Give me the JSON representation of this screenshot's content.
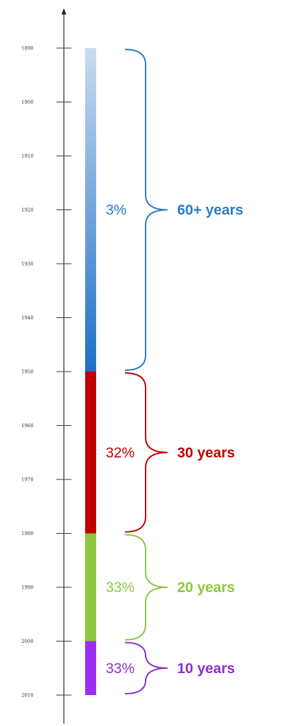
{
  "chart_data": {
    "type": "bar",
    "orientation": "vertical-timeline",
    "ylim": [
      1887,
      2014
    ],
    "tick_labels": [
      "1890",
      "1900",
      "1910",
      "1920",
      "1930",
      "1940",
      "1950",
      "1960",
      "1970",
      "1980",
      "1990",
      "2000",
      "2010"
    ],
    "ticks": [
      1890,
      1900,
      1910,
      1920,
      1930,
      1940,
      1950,
      1960,
      1970,
      1980,
      1990,
      2000,
      2010
    ],
    "segments": [
      {
        "start": 1890,
        "end": 1950,
        "percent_label": "3%",
        "duration_label": "60+ years",
        "color": "#2a7bc4",
        "gradient": [
          "#c8dcef",
          "#1f6fc6"
        ]
      },
      {
        "start": 1950,
        "end": 1980,
        "percent_label": "32%",
        "duration_label": "30 years",
        "color": "#c00000",
        "gradient": [
          "#c00000",
          "#c00000"
        ]
      },
      {
        "start": 1980,
        "end": 2000,
        "percent_label": "33%",
        "duration_label": "20 years",
        "color": "#8dc63f",
        "gradient": [
          "#8dc63f",
          "#8dc63f"
        ]
      },
      {
        "start": 2000,
        "end": 2010,
        "percent_label": "33%",
        "duration_label": "10 years",
        "color": "#8b2fc9",
        "gradient": [
          "#9a2ff0",
          "#9a2ff0"
        ]
      }
    ]
  }
}
